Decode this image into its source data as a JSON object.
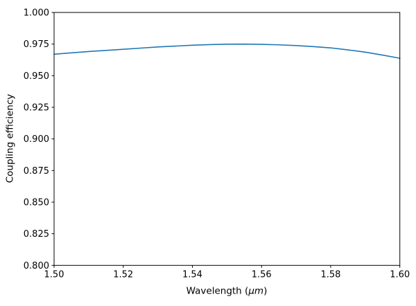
{
  "figure": {
    "background_color": "#ffffff",
    "text_color": "#000000",
    "spine_color": "#000000"
  },
  "chart_data": {
    "type": "line",
    "title": "",
    "xlabel": "Wavelength (μm)",
    "xlabel_parts": {
      "prefix": "Wavelength (",
      "unit": "μm",
      "suffix": ")"
    },
    "ylabel": "Coupling efficiency",
    "xlim": [
      1.5,
      1.6
    ],
    "ylim": [
      0.8,
      1.0
    ],
    "xticks": [
      1.5,
      1.52,
      1.54,
      1.56,
      1.58,
      1.6
    ],
    "xtick_labels": [
      "1.50",
      "1.52",
      "1.54",
      "1.56",
      "1.58",
      "1.60"
    ],
    "yticks": [
      0.8,
      0.825,
      0.85,
      0.875,
      0.9,
      0.925,
      0.95,
      0.975,
      1.0
    ],
    "ytick_labels": [
      "0.800",
      "0.825",
      "0.850",
      "0.875",
      "0.900",
      "0.925",
      "0.950",
      "0.975",
      "1.000"
    ],
    "grid": false,
    "legend": null,
    "series": [
      {
        "name": "coupling efficiency",
        "color": "#1f77b4",
        "line_width": 1.6,
        "x": [
          1.5,
          1.505,
          1.51,
          1.515,
          1.52,
          1.525,
          1.53,
          1.535,
          1.54,
          1.545,
          1.55,
          1.555,
          1.56,
          1.565,
          1.57,
          1.575,
          1.58,
          1.585,
          1.59,
          1.595,
          1.6
        ],
        "y": [
          0.967,
          0.9681,
          0.9691,
          0.97,
          0.9709,
          0.9718,
          0.9727,
          0.9734,
          0.9741,
          0.9746,
          0.9749,
          0.975,
          0.9748,
          0.9744,
          0.9738,
          0.973,
          0.972,
          0.9704,
          0.9686,
          0.9663,
          0.9638
        ]
      }
    ]
  }
}
